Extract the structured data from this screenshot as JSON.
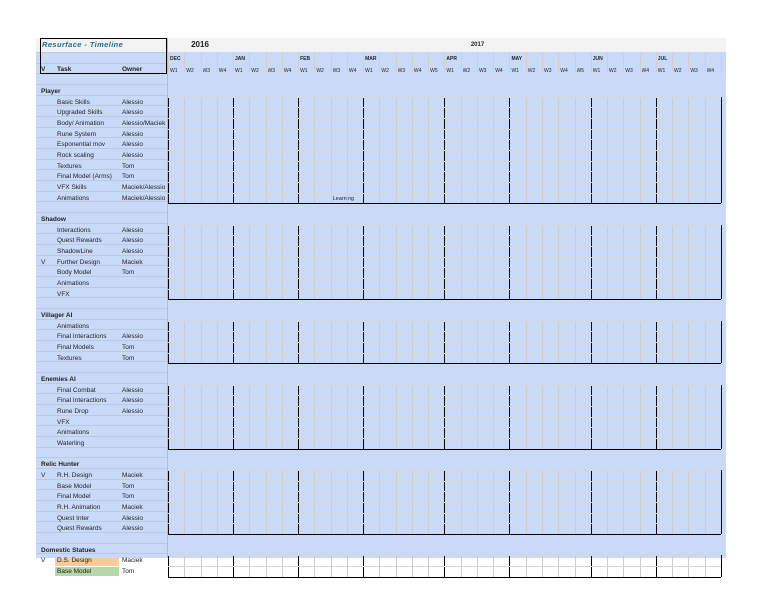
{
  "title": "Resurface - Timeline",
  "years": {
    "first": "2016",
    "second": "2017"
  },
  "months": [
    "DEC",
    "JAN",
    "FEB",
    "MAR",
    "APR",
    "MAY",
    "JUN",
    "JUL"
  ],
  "month_weeks": [
    4,
    4,
    4,
    5,
    4,
    5,
    4,
    4
  ],
  "week_labels": [
    "W1",
    "W2",
    "W3",
    "W4",
    "W1",
    "W2",
    "W3",
    "W4",
    "W1",
    "W2",
    "W3",
    "W4",
    "W1",
    "W2",
    "W3",
    "W4",
    "W5",
    "W1",
    "W2",
    "W3",
    "W4",
    "W1",
    "W2",
    "W3",
    "W4",
    "W5",
    "W1",
    "W2",
    "W3",
    "W4",
    "W1",
    "W2",
    "W3",
    "W4"
  ],
  "columns": {
    "v": "V",
    "task": "Task",
    "owner": "Owner"
  },
  "annotation": {
    "text": "Learning"
  },
  "colors": {
    "red": "#ff0000",
    "blue": "#a4c2f4",
    "green": "#b6d7a8",
    "orange": "#f9cb9c",
    "yellow": "#ffff00",
    "gray": "#b7b7b7",
    "lightgray": "#d9d9d9",
    "sheetblue": "#c9daf8"
  },
  "sections": [
    {
      "name": "Player",
      "rows": [
        {
          "v": "",
          "task": "Basic Skills",
          "owner": "Alessio",
          "color": "blue",
          "gantt": [
            [
              3,
              "blue"
            ]
          ]
        },
        {
          "v": "",
          "task": "Upgraded Skills",
          "owner": "Alessio",
          "color": "blue",
          "gantt": [
            [
              4,
              "blue"
            ],
            [
              5,
              "blue"
            ]
          ]
        },
        {
          "v": "",
          "task": "Body/ Animation",
          "owner": "Alessio/Maciek",
          "color": "blue",
          "gantt": [
            [
              6,
              "blue"
            ]
          ]
        },
        {
          "v": "",
          "task": "Rune System",
          "owner": "Alessio",
          "color": "blue",
          "gantt": [
            [
              5,
              "blue"
            ]
          ]
        },
        {
          "v": "",
          "task": "Esponential mov",
          "owner": "Alessio",
          "color": "lightgray",
          "rowgray": true,
          "gantt": []
        },
        {
          "v": "",
          "task": "Rock scaling",
          "owner": "Alessio",
          "color": "blue",
          "gantt": []
        },
        {
          "v": "",
          "task": "Textures",
          "owner": "Tom",
          "color": "green",
          "gantt": [
            [
              11,
              "green"
            ]
          ]
        },
        {
          "v": "",
          "task": "Final Model (Arms)",
          "owner": "Tom",
          "color": "green",
          "gantt": [
            [
              5,
              "green"
            ]
          ]
        },
        {
          "v": "",
          "task": "VFX Skills",
          "owner": "Maciek/Alessio",
          "color": "yellow",
          "gantt": []
        },
        {
          "v": "",
          "task": "Animations",
          "owner": "Maciek/Alessio",
          "color": "yellow",
          "gantt": [
            [
              6,
              "orange"
            ],
            [
              10,
              "orange"
            ],
            [
              11,
              "orange"
            ]
          ],
          "note": true
        }
      ]
    },
    {
      "name": "Shadow",
      "rows": [
        {
          "v": "",
          "task": "Interactions",
          "owner": "Alessio",
          "color": "blue",
          "gantt": [
            [
              13,
              "blue"
            ]
          ]
        },
        {
          "v": "",
          "task": "Quest Rewards",
          "owner": "Alessio",
          "color": "blue",
          "gantt": [
            [
              12,
              "blue"
            ]
          ]
        },
        {
          "v": "",
          "task": "ShadowLine",
          "owner": "Alessio",
          "color": "blue",
          "gantt": [
            [
              13,
              "blue"
            ]
          ]
        },
        {
          "v": "V",
          "task": "Further Design",
          "owner": "Maciek",
          "color": "orange",
          "gantt": [
            [
              6,
              "orange"
            ]
          ]
        },
        {
          "v": "",
          "task": "Body Model",
          "owner": "Tom",
          "color": "green",
          "gantt": [
            [
              3,
              "green"
            ]
          ]
        },
        {
          "v": "",
          "task": "Animations",
          "owner": "",
          "color": "yellow",
          "gantt": [
            [
              13,
              "orange"
            ]
          ]
        },
        {
          "v": "",
          "task": "VFX",
          "owner": "",
          "color": "yellow",
          "gantt": [
            [
              13,
              "orange"
            ]
          ]
        }
      ]
    },
    {
      "name": "Villager AI",
      "rows": [
        {
          "v": "",
          "task": "Animations",
          "owner": "",
          "color": "yellow",
          "gantt": [
            [
              14,
              "orange"
            ]
          ]
        },
        {
          "v": "",
          "task": "Final Interactions",
          "owner": "Alessio",
          "color": "blue",
          "gantt": [
            [
              14,
              "blue"
            ]
          ]
        },
        {
          "v": "",
          "task": "Final Models",
          "owner": "Tom",
          "color": "green",
          "gantt": [
            [
              10,
              "green"
            ]
          ]
        },
        {
          "v": "",
          "task": "Textures",
          "owner": "Tom",
          "color": "green",
          "gantt": [
            [
              10,
              "green"
            ]
          ]
        }
      ]
    },
    {
      "name": "Enemies AI",
      "rows": [
        {
          "v": "",
          "task": "Final Combat",
          "owner": "Alessio",
          "color": "blue",
          "gantt": [
            [
              14,
              "blue"
            ]
          ]
        },
        {
          "v": "",
          "task": "Final Interactions",
          "owner": "Alessio",
          "color": "blue",
          "gantt": [
            [
              14,
              "blue"
            ]
          ]
        },
        {
          "v": "",
          "task": "Rune Drop",
          "owner": "Alessio",
          "color": "lightgray",
          "rowgray": true,
          "gantt": []
        },
        {
          "v": "",
          "task": "VFX",
          "owner": "",
          "color": "yellow",
          "gantt": [
            [
              14,
              "orange"
            ],
            [
              15,
              "orange"
            ]
          ]
        },
        {
          "v": "",
          "task": "Animations",
          "owner": "",
          "color": "yellow",
          "gantt": [
            [
              14,
              "orange"
            ],
            [
              15,
              "orange"
            ]
          ]
        },
        {
          "v": "",
          "task": "Waterling",
          "owner": "",
          "color": "orange",
          "gantt": [
            [
              6,
              "orange"
            ]
          ]
        }
      ]
    },
    {
      "name": "Relic Hunter",
      "rows": [
        {
          "v": "V",
          "task": "R.H. Design",
          "owner": "Maciek",
          "color": "orange",
          "gantt": [
            [
              3,
              "orange"
            ]
          ]
        },
        {
          "v": "",
          "task": "Base Model",
          "owner": "Tom",
          "color": "green",
          "gantt": [
            [
              4,
              "green"
            ]
          ]
        },
        {
          "v": "",
          "task": "Final Model",
          "owner": "Tom",
          "color": "green",
          "gantt": [
            [
              10,
              "green"
            ]
          ]
        },
        {
          "v": "",
          "task": "R.H. Animation",
          "owner": "Maciek",
          "color": "yellow",
          "gantt": [
            [
              14,
              "orange"
            ]
          ]
        },
        {
          "v": "",
          "task": "Quest Inter",
          "owner": "Alessio",
          "color": "blue",
          "gantt": [
            [
              12,
              "blue"
            ]
          ]
        },
        {
          "v": "",
          "task": "Quest Rewards",
          "owner": "Alessio",
          "color": "blue",
          "gantt": [
            [
              12,
              "blue"
            ]
          ]
        }
      ]
    },
    {
      "name": "Domestic Statues",
      "rows": [
        {
          "v": "V",
          "task": "D.S. Design",
          "owner": "Maciek",
          "color": "orange",
          "gantt": [
            [
              3,
              "orange"
            ]
          ]
        },
        {
          "v": "",
          "task": "Base Model",
          "owner": "Tom",
          "color": "green",
          "gantt": [
            [
              4,
              "green"
            ]
          ]
        }
      ]
    }
  ]
}
